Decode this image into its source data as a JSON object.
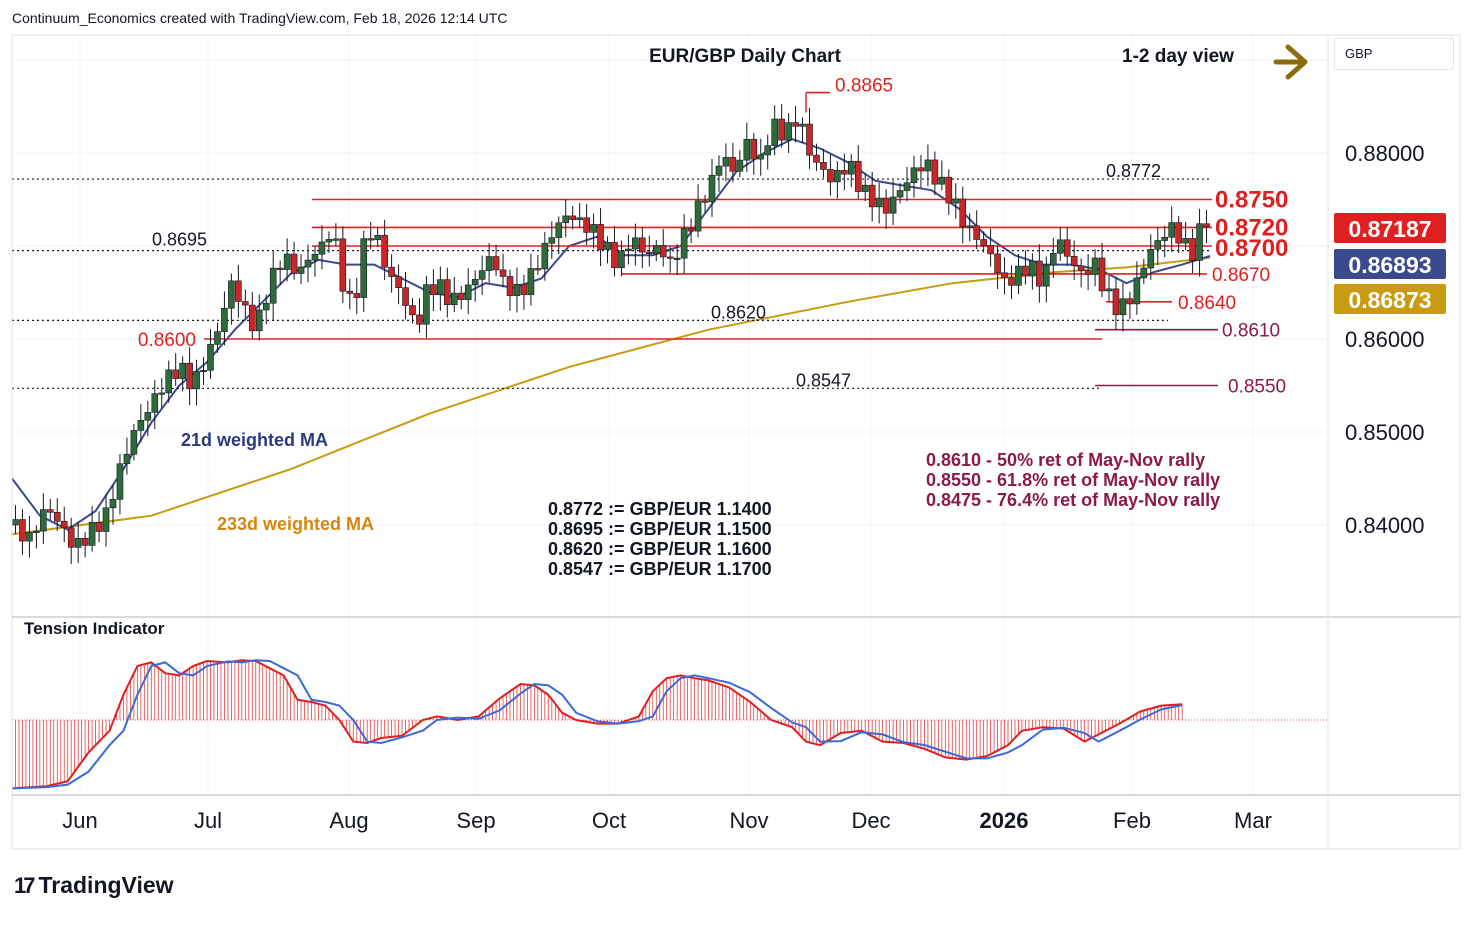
{
  "header": {
    "attribution": "Continuum_Economics created with TradingView.com, Feb 18, 2026 12:14 UTC",
    "brand": "TradingView",
    "currency": "GBP"
  },
  "chart_data": {
    "type": "candlestick",
    "title": "EUR/GBP Daily Chart",
    "view_label": "1-2 day view",
    "view_direction": "right",
    "y_ticks": [
      "0.88000",
      "0.86000",
      "0.85000",
      "0.84000"
    ],
    "y_tick_values": [
      0.88,
      0.86,
      0.85,
      0.84
    ],
    "x_ticks": [
      "Jun",
      "Jul",
      "Aug",
      "Sep",
      "Oct",
      "Nov",
      "Dec",
      "2026",
      "Feb",
      "Mar"
    ],
    "price_badges": [
      {
        "label": "0.87187",
        "color": "#e02020"
      },
      {
        "label": "0.86893",
        "color": "#3a4a8c"
      },
      {
        "label": "0.86873",
        "color": "#c89b10"
      }
    ],
    "levels": [
      {
        "label": "0.8865",
        "value": 0.8865,
        "kind": "high"
      },
      {
        "label": "0.8772",
        "value": 0.8772,
        "kind": "dotted"
      },
      {
        "label": "0.8750",
        "value": 0.875,
        "kind": "resistance"
      },
      {
        "label": "0.8720",
        "value": 0.872,
        "kind": "resistance"
      },
      {
        "label": "0.8700",
        "value": 0.87,
        "kind": "resistance"
      },
      {
        "label": "0.8695",
        "value": 0.8695,
        "kind": "dotted"
      },
      {
        "label": "0.8670",
        "value": 0.867,
        "kind": "support"
      },
      {
        "label": "0.8640",
        "value": 0.864,
        "kind": "support"
      },
      {
        "label": "0.8620",
        "value": 0.862,
        "kind": "dotted"
      },
      {
        "label": "0.8610",
        "value": 0.861,
        "kind": "retracement"
      },
      {
        "label": "0.8600",
        "value": 0.86,
        "kind": "support"
      },
      {
        "label": "0.8550",
        "value": 0.855,
        "kind": "retracement"
      },
      {
        "label": "0.8547",
        "value": 0.8547,
        "kind": "dotted"
      }
    ],
    "ma_labels": [
      "21d weighted MA",
      "233d weighted MA"
    ],
    "retracement_notes": [
      "0.8610 - 50% ret of May-Nov rally",
      "0.8550 - 61.8% ret of May-Nov rally",
      "0.8475 - 76.4% ret of May-Nov rally"
    ],
    "conversion_notes": [
      "0.8772 := GBP/EUR 1.1400",
      "0.8695 := GBP/EUR 1.1500",
      "0.8620 := GBP/EUR 1.1600",
      "0.8547 := GBP/EUR 1.1700"
    ],
    "close_path": [
      [
        0,
        0.84
      ],
      [
        5,
        0.8385
      ],
      [
        10,
        0.842
      ],
      [
        14,
        0.84
      ],
      [
        18,
        0.8375
      ],
      [
        22,
        0.839
      ],
      [
        27,
        0.841
      ],
      [
        31,
        0.846
      ],
      [
        35,
        0.85
      ],
      [
        40,
        0.853
      ],
      [
        44,
        0.8555
      ],
      [
        48,
        0.857
      ],
      [
        52,
        0.855
      ],
      [
        56,
        0.858
      ],
      [
        60,
        0.862
      ],
      [
        63,
        0.866
      ],
      [
        67,
        0.863
      ],
      [
        70,
        0.861
      ],
      [
        74,
        0.866
      ],
      [
        78,
        0.869
      ],
      [
        82,
        0.867
      ],
      [
        86,
        0.869
      ],
      [
        89,
        0.87
      ],
      [
        92,
        0.872
      ],
      [
        95,
        0.866
      ],
      [
        98,
        0.863
      ],
      [
        101,
        0.87
      ],
      [
        104,
        0.872
      ],
      [
        107,
        0.868
      ],
      [
        110,
        0.866
      ],
      [
        113,
        0.864
      ],
      [
        116,
        0.861
      ],
      [
        119,
        0.865
      ],
      [
        122,
        0.866
      ],
      [
        126,
        0.864
      ],
      [
        130,
        0.865
      ],
      [
        134,
        0.867
      ],
      [
        138,
        0.869
      ],
      [
        141,
        0.866
      ],
      [
        145,
        0.865
      ],
      [
        148,
        0.866
      ],
      [
        152,
        0.869
      ],
      [
        156,
        0.872
      ],
      [
        160,
        0.8735
      ],
      [
        163,
        0.8725
      ],
      [
        166,
        0.872
      ],
      [
        170,
        0.87
      ],
      [
        174,
        0.868
      ],
      [
        178,
        0.871
      ],
      [
        182,
        0.869
      ],
      [
        186,
        0.87
      ],
      [
        189,
        0.868
      ],
      [
        193,
        0.871
      ],
      [
        197,
        0.874
      ],
      [
        201,
        0.877
      ],
      [
        204,
        0.88
      ],
      [
        207,
        0.878
      ],
      [
        211,
        0.881
      ],
      [
        215,
        0.879
      ],
      [
        218,
        0.883
      ],
      [
        222,
        0.882
      ],
      [
        226,
        0.884
      ],
      [
        229,
        0.88
      ],
      [
        233,
        0.878
      ],
      [
        236,
        0.877
      ],
      [
        240,
        0.879
      ],
      [
        244,
        0.876
      ],
      [
        247,
        0.875
      ],
      [
        251,
        0.874
      ],
      [
        255,
        0.876
      ],
      [
        259,
        0.878
      ],
      [
        262,
        0.879
      ],
      [
        266,
        0.877
      ],
      [
        270,
        0.875
      ],
      [
        274,
        0.872
      ],
      [
        277,
        0.871
      ],
      [
        281,
        0.869
      ],
      [
        285,
        0.866
      ],
      [
        289,
        0.867
      ],
      [
        292,
        0.868
      ],
      [
        296,
        0.866
      ],
      [
        300,
        0.871
      ],
      [
        303,
        0.869
      ],
      [
        307,
        0.867
      ],
      [
        311,
        0.868
      ],
      [
        314,
        0.865
      ],
      [
        318,
        0.863
      ],
      [
        322,
        0.865
      ],
      [
        326,
        0.869
      ],
      [
        329,
        0.8705
      ],
      [
        333,
        0.872
      ],
      [
        337,
        0.87
      ],
      [
        340,
        0.869
      ],
      [
        342,
        0.874
      ],
      [
        344,
        0.87187
      ]
    ],
    "ma21_path": [
      [
        0,
        0.845
      ],
      [
        8,
        0.841
      ],
      [
        16,
        0.8395
      ],
      [
        24,
        0.8415
      ],
      [
        32,
        0.846
      ],
      [
        40,
        0.851
      ],
      [
        48,
        0.855
      ],
      [
        56,
        0.8575
      ],
      [
        64,
        0.861
      ],
      [
        72,
        0.864
      ],
      [
        80,
        0.867
      ],
      [
        88,
        0.8685
      ],
      [
        96,
        0.868
      ],
      [
        104,
        0.868
      ],
      [
        112,
        0.8665
      ],
      [
        120,
        0.865
      ],
      [
        128,
        0.8645
      ],
      [
        136,
        0.866
      ],
      [
        144,
        0.8655
      ],
      [
        152,
        0.8665
      ],
      [
        160,
        0.87
      ],
      [
        168,
        0.871
      ],
      [
        176,
        0.869
      ],
      [
        184,
        0.869
      ],
      [
        192,
        0.87
      ],
      [
        200,
        0.874
      ],
      [
        208,
        0.878
      ],
      [
        216,
        0.88
      ],
      [
        224,
        0.8815
      ],
      [
        232,
        0.8805
      ],
      [
        240,
        0.879
      ],
      [
        248,
        0.877
      ],
      [
        256,
        0.8765
      ],
      [
        264,
        0.876
      ],
      [
        272,
        0.874
      ],
      [
        280,
        0.871
      ],
      [
        288,
        0.869
      ],
      [
        296,
        0.868
      ],
      [
        304,
        0.868
      ],
      [
        312,
        0.8675
      ],
      [
        320,
        0.866
      ],
      [
        328,
        0.8672
      ],
      [
        336,
        0.868
      ],
      [
        344,
        0.86893
      ]
    ],
    "ma233_path": [
      [
        0,
        0.839
      ],
      [
        40,
        0.841
      ],
      [
        80,
        0.846
      ],
      [
        120,
        0.852
      ],
      [
        160,
        0.857
      ],
      [
        200,
        0.861
      ],
      [
        240,
        0.864
      ],
      [
        270,
        0.866
      ],
      [
        300,
        0.8672
      ],
      [
        320,
        0.8677
      ],
      [
        344,
        0.86873
      ]
    ],
    "x_domain": [
      0,
      344
    ],
    "y_domain": [
      0.8355,
      0.892
    ],
    "tension_indicator": {
      "label": "Tension Indicator",
      "values": [
        [
          0,
          -0.95
        ],
        [
          10,
          -0.92
        ],
        [
          16,
          -0.85
        ],
        [
          22,
          -0.45
        ],
        [
          28,
          -0.15
        ],
        [
          32,
          0.35
        ],
        [
          36,
          0.75
        ],
        [
          40,
          0.8
        ],
        [
          44,
          0.65
        ],
        [
          48,
          0.62
        ],
        [
          52,
          0.75
        ],
        [
          56,
          0.82
        ],
        [
          62,
          0.8
        ],
        [
          66,
          0.83
        ],
        [
          70,
          0.82
        ],
        [
          74,
          0.72
        ],
        [
          78,
          0.62
        ],
        [
          82,
          0.28
        ],
        [
          86,
          0.25
        ],
        [
          90,
          0.2
        ],
        [
          94,
          0.0
        ],
        [
          98,
          -0.3
        ],
        [
          102,
          -0.32
        ],
        [
          106,
          -0.25
        ],
        [
          112,
          -0.22
        ],
        [
          118,
          0.0
        ],
        [
          122,
          0.05
        ],
        [
          128,
          0.0
        ],
        [
          134,
          0.05
        ],
        [
          140,
          0.3
        ],
        [
          146,
          0.5
        ],
        [
          150,
          0.48
        ],
        [
          154,
          0.35
        ],
        [
          158,
          0.1
        ],
        [
          162,
          0.0
        ],
        [
          168,
          -0.05
        ],
        [
          174,
          -0.05
        ],
        [
          180,
          0.05
        ],
        [
          184,
          0.4
        ],
        [
          188,
          0.58
        ],
        [
          192,
          0.62
        ],
        [
          196,
          0.58
        ],
        [
          200,
          0.55
        ],
        [
          206,
          0.45
        ],
        [
          212,
          0.25
        ],
        [
          218,
          0.0
        ],
        [
          224,
          -0.1
        ],
        [
          228,
          -0.3
        ],
        [
          232,
          -0.35
        ],
        [
          238,
          -0.18
        ],
        [
          244,
          -0.15
        ],
        [
          250,
          -0.3
        ],
        [
          256,
          -0.32
        ],
        [
          262,
          -0.4
        ],
        [
          268,
          -0.52
        ],
        [
          274,
          -0.55
        ],
        [
          280,
          -0.5
        ],
        [
          286,
          -0.35
        ],
        [
          290,
          -0.15
        ],
        [
          296,
          -0.1
        ],
        [
          302,
          -0.12
        ],
        [
          308,
          -0.3
        ],
        [
          312,
          -0.2
        ],
        [
          318,
          -0.05
        ],
        [
          324,
          0.12
        ],
        [
          330,
          0.2
        ],
        [
          336,
          0.22
        ]
      ]
    }
  }
}
